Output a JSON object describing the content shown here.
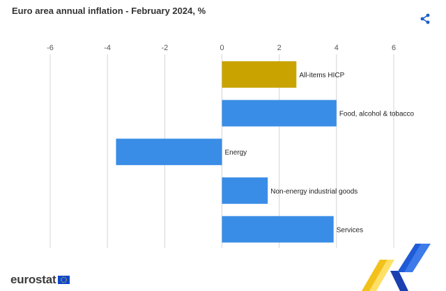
{
  "title": "Euro area annual inflation - February 2024, %",
  "share_icon": "share-icon",
  "brand": {
    "logo_text": "eurostat",
    "flag_icon": "eu-flag-icon"
  },
  "colors": {
    "highlight": "#C9A400",
    "bar": "#3A8DE6",
    "grid": "#D4D4D4",
    "axis_text": "#555555",
    "share": "#1A5EC9"
  },
  "chart_data": {
    "type": "bar",
    "orientation": "horizontal",
    "categories": [
      "All-items HICP",
      "Food, alcohol & tobacco",
      "Energy",
      "Non-energy industrial goods",
      "Services"
    ],
    "values": [
      2.6,
      4.0,
      -3.7,
      1.6,
      3.9
    ],
    "highlighted_category": "All-items HICP",
    "xlim": [
      -6,
      6
    ],
    "xticks": [
      "-6",
      "-4",
      "-2",
      "0",
      "2",
      "4",
      "6"
    ],
    "xtick_values": [
      -6,
      -4,
      -2,
      0,
      2,
      4,
      6
    ],
    "axis_position": "top",
    "grid": true
  }
}
